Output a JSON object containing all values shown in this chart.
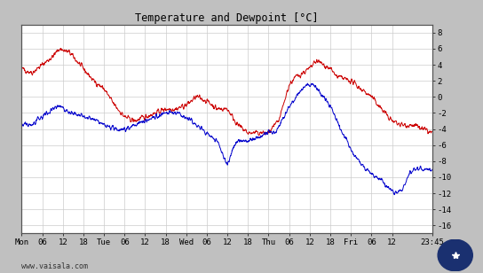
{
  "title": "Temperature and Dewpoint [°C]",
  "ylim": [
    -17.0,
    9.0
  ],
  "bg_color": "#ffffff",
  "grid_color": "#cccccc",
  "outer_bg": "#c0c0c0",
  "temp_color": "#cc0000",
  "dew_color": "#0000cc",
  "watermark": "www.vaisala.com",
  "x_tick_labels": [
    "Mon",
    "06",
    "12",
    "18",
    "Tue",
    "06",
    "12",
    "18",
    "Wed",
    "06",
    "12",
    "18",
    "Thu",
    "06",
    "12",
    "18",
    "Fri",
    "06",
    "12",
    "23:45"
  ],
  "x_tick_positions": [
    0,
    6,
    12,
    18,
    24,
    30,
    36,
    42,
    48,
    54,
    60,
    66,
    72,
    78,
    84,
    90,
    96,
    102,
    108,
    119.75
  ],
  "total_hours": 119.75,
  "line_width": 0.7,
  "yticks": [
    8,
    6,
    4,
    2,
    0,
    -2,
    -4,
    -6,
    -8,
    -10,
    -12,
    -14,
    -16
  ],
  "temp_points": [
    [
      0,
      3.5
    ],
    [
      3,
      3.0
    ],
    [
      6,
      4.0
    ],
    [
      9,
      5.0
    ],
    [
      11,
      6.0
    ],
    [
      14,
      5.5
    ],
    [
      18,
      3.5
    ],
    [
      21,
      2.0
    ],
    [
      24,
      1.0
    ],
    [
      27,
      -1.0
    ],
    [
      30,
      -2.5
    ],
    [
      33,
      -3.0
    ],
    [
      36,
      -2.5
    ],
    [
      39,
      -2.0
    ],
    [
      42,
      -1.5
    ],
    [
      45,
      -1.5
    ],
    [
      48,
      -1.0
    ],
    [
      51,
      0.0
    ],
    [
      54,
      -0.5
    ],
    [
      57,
      -1.5
    ],
    [
      60,
      -1.5
    ],
    [
      63,
      -3.5
    ],
    [
      66,
      -4.5
    ],
    [
      69,
      -4.5
    ],
    [
      72,
      -4.5
    ],
    [
      75,
      -3.0
    ],
    [
      78,
      1.5
    ],
    [
      80,
      2.5
    ],
    [
      82,
      3.0
    ],
    [
      84,
      3.5
    ],
    [
      86,
      4.5
    ],
    [
      88,
      4.0
    ],
    [
      90,
      3.5
    ],
    [
      92,
      2.5
    ],
    [
      96,
      2.0
    ],
    [
      99,
      1.0
    ],
    [
      102,
      0.0
    ],
    [
      105,
      -1.5
    ],
    [
      108,
      -3.0
    ],
    [
      111,
      -3.5
    ],
    [
      114,
      -3.5
    ],
    [
      117,
      -4.0
    ],
    [
      119.75,
      -4.5
    ]
  ],
  "dew_points": [
    [
      0,
      -3.5
    ],
    [
      3,
      -3.5
    ],
    [
      6,
      -2.5
    ],
    [
      9,
      -1.5
    ],
    [
      11,
      -1.0
    ],
    [
      14,
      -2.0
    ],
    [
      18,
      -2.5
    ],
    [
      21,
      -2.8
    ],
    [
      24,
      -3.5
    ],
    [
      27,
      -4.0
    ],
    [
      30,
      -4.0
    ],
    [
      33,
      -3.5
    ],
    [
      36,
      -3.0
    ],
    [
      39,
      -2.5
    ],
    [
      42,
      -2.0
    ],
    [
      45,
      -2.0
    ],
    [
      48,
      -2.5
    ],
    [
      51,
      -3.5
    ],
    [
      54,
      -4.5
    ],
    [
      57,
      -5.5
    ],
    [
      60,
      -8.5
    ],
    [
      62,
      -6.0
    ],
    [
      63,
      -5.5
    ],
    [
      66,
      -5.5
    ],
    [
      69,
      -5.0
    ],
    [
      72,
      -4.5
    ],
    [
      74,
      -4.5
    ],
    [
      77,
      -2.0
    ],
    [
      79,
      -0.5
    ],
    [
      81,
      0.5
    ],
    [
      83,
      1.5
    ],
    [
      85,
      1.5
    ],
    [
      87,
      0.5
    ],
    [
      89,
      -0.5
    ],
    [
      91,
      -2.0
    ],
    [
      93,
      -4.0
    ],
    [
      96,
      -6.5
    ],
    [
      99,
      -8.5
    ],
    [
      102,
      -9.5
    ],
    [
      105,
      -10.5
    ],
    [
      107,
      -11.5
    ],
    [
      109,
      -12.0
    ],
    [
      111,
      -11.5
    ],
    [
      113,
      -9.5
    ],
    [
      115,
      -9.0
    ],
    [
      117,
      -9.0
    ],
    [
      119.75,
      -9.0
    ]
  ]
}
